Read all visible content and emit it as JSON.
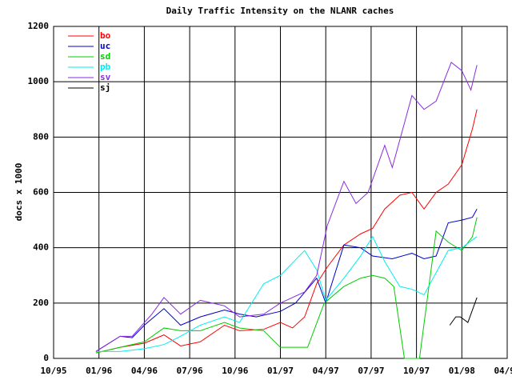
{
  "chart_data": {
    "type": "line",
    "title": "Daily Traffic Intensity on the NLANR caches",
    "ylabel": "docs x 1000",
    "xlim": [
      0,
      30
    ],
    "ylim": [
      0,
      1200
    ],
    "xticks": [
      {
        "value": 0,
        "label": "10/95"
      },
      {
        "value": 3,
        "label": "01/96"
      },
      {
        "value": 6,
        "label": "04/96"
      },
      {
        "value": 9,
        "label": "07/96"
      },
      {
        "value": 12,
        "label": "10/96"
      },
      {
        "value": 15,
        "label": "01/97"
      },
      {
        "value": 18,
        "label": "04/97"
      },
      {
        "value": 21,
        "label": "07/97"
      },
      {
        "value": 24,
        "label": "10/97"
      },
      {
        "value": 27,
        "label": "01/98"
      },
      {
        "value": 30,
        "label": "04/98"
      }
    ],
    "yticks": [
      0,
      200,
      400,
      600,
      800,
      1000,
      1200
    ],
    "grid": true,
    "legend": "top-left",
    "series": [
      {
        "name": "bo",
        "color": "#ff0000",
        "x": [
          2.8,
          4.4,
          6.0,
          7.3,
          8.4,
          9.7,
          11.3,
          12.3,
          13.9,
          15.0,
          15.8,
          16.6,
          17.4,
          18.1,
          19.2,
          20.3,
          21.1,
          21.9,
          22.9,
          23.7,
          24.5,
          25.3,
          26.1,
          27.0,
          27.7,
          28.0
        ],
        "values": [
          20,
          40,
          55,
          85,
          45,
          60,
          120,
          100,
          105,
          130,
          110,
          150,
          270,
          330,
          410,
          450,
          470,
          540,
          590,
          600,
          540,
          600,
          630,
          700,
          830,
          900
        ]
      },
      {
        "name": "uc",
        "color": "#0000cc",
        "x": [
          2.8,
          4.4,
          5.2,
          6.0,
          7.3,
          8.4,
          9.7,
          11.3,
          12.3,
          13.4,
          15.0,
          16.0,
          17.4,
          18.0,
          19.2,
          20.3,
          21.1,
          22.4,
          23.7,
          24.5,
          25.3,
          26.1,
          27.0,
          27.7,
          28.0
        ],
        "values": [
          25,
          80,
          75,
          120,
          180,
          120,
          150,
          175,
          160,
          150,
          170,
          200,
          290,
          200,
          410,
          400,
          370,
          360,
          380,
          360,
          370,
          490,
          500,
          510,
          540
        ]
      },
      {
        "name": "sd",
        "color": "#00cc00",
        "x": [
          2.8,
          4.4,
          6.0,
          7.3,
          8.4,
          9.7,
          11.3,
          12.3,
          13.9,
          15.0,
          16.8,
          17.9,
          19.2,
          20.3,
          21.1,
          21.9,
          22.5,
          23.2,
          24.2,
          25.3,
          26.1,
          27.0,
          27.7,
          28.0
        ],
        "values": [
          20,
          40,
          60,
          110,
          100,
          100,
          130,
          110,
          100,
          40,
          40,
          200,
          260,
          290,
          300,
          290,
          260,
          0,
          0,
          460,
          420,
          390,
          440,
          510
        ]
      },
      {
        "name": "pb",
        "color": "#00eeee",
        "x": [
          2.8,
          4.4,
          6.0,
          7.3,
          8.4,
          9.7,
          11.3,
          12.3,
          13.9,
          15.0,
          16.6,
          17.4,
          18.0,
          19.2,
          20.3,
          21.1,
          21.9,
          22.9,
          23.7,
          24.5,
          26.1,
          27.0,
          28.0
        ],
        "values": [
          25,
          25,
          35,
          50,
          80,
          120,
          150,
          130,
          270,
          300,
          390,
          320,
          210,
          290,
          370,
          440,
          350,
          260,
          250,
          230,
          390,
          400,
          440
        ]
      },
      {
        "name": "sv",
        "color": "#8a2be2",
        "x": [
          2.8,
          4.4,
          5.2,
          6.5,
          7.3,
          8.4,
          9.7,
          11.3,
          12.3,
          13.9,
          15.0,
          16.6,
          17.4,
          18.1,
          19.2,
          20.0,
          20.8,
          21.9,
          22.4,
          23.7,
          24.5,
          25.3,
          26.3,
          27.0,
          27.6,
          28.0
        ],
        "values": [
          25,
          80,
          80,
          160,
          220,
          160,
          210,
          190,
          150,
          160,
          200,
          240,
          300,
          480,
          640,
          560,
          600,
          770,
          690,
          950,
          900,
          930,
          1070,
          1040,
          970,
          1060
        ]
      },
      {
        "name": "sj",
        "color": "#000000",
        "x": [
          26.2,
          26.6,
          26.9,
          27.4,
          28.0
        ],
        "values": [
          120,
          150,
          150,
          130,
          220
        ]
      }
    ]
  }
}
